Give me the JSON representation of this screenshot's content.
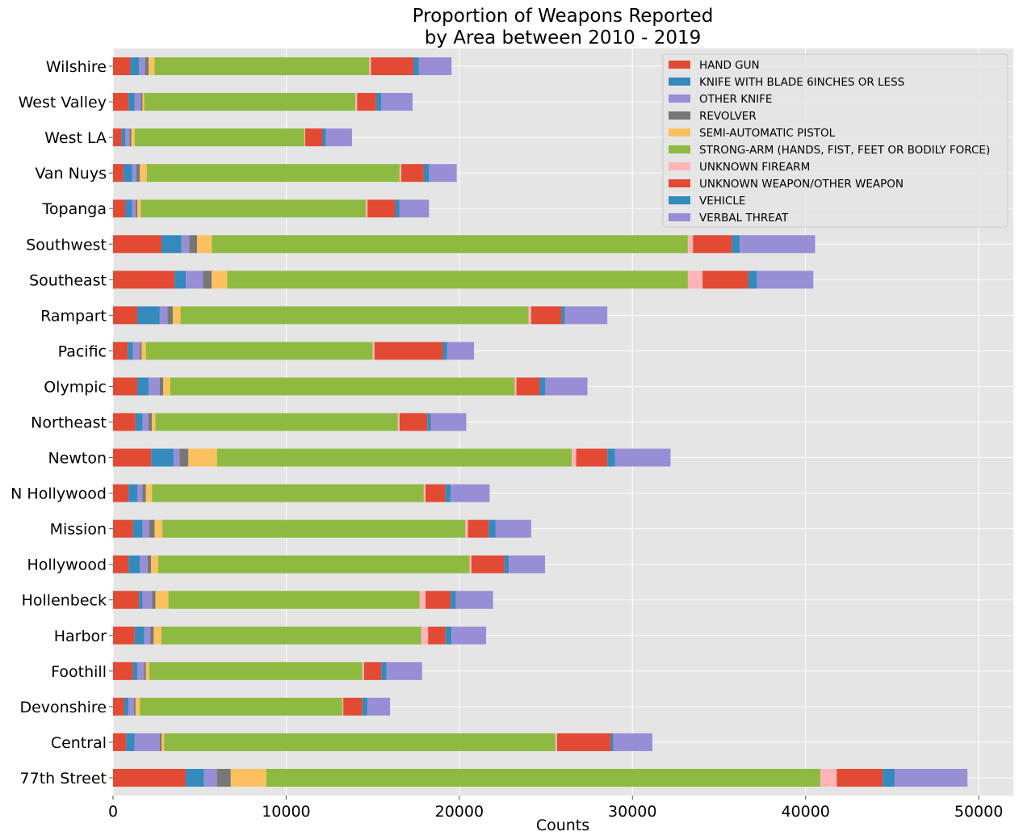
{
  "chart_data": {
    "type": "bar",
    "orientation": "horizontal",
    "stacked": true,
    "title": [
      "Proportion of Weapons Reported",
      "by Area between 2010 - 2019"
    ],
    "xlabel": "Counts",
    "ylabel": "",
    "xlim": [
      0,
      52000
    ],
    "xticks": [
      0,
      10000,
      20000,
      30000,
      40000,
      50000
    ],
    "grid": true,
    "legend_position": "top-right",
    "categories": [
      "77th Street",
      "Central",
      "Devonshire",
      "Foothill",
      "Harbor",
      "Hollenbeck",
      "Hollywood",
      "Mission",
      "N Hollywood",
      "Newton",
      "Northeast",
      "Olympic",
      "Pacific",
      "Rampart",
      "Southeast",
      "Southwest",
      "Topanga",
      "Van Nuys",
      "West LA",
      "West Valley",
      "Wilshire"
    ],
    "series": [
      {
        "name": "HAND GUN",
        "color": "#E24A33",
        "values": [
          4200,
          750,
          650,
          1150,
          1250,
          1500,
          900,
          1150,
          900,
          2200,
          1300,
          1400,
          850,
          1400,
          3550,
          2800,
          700,
          600,
          500,
          900,
          1000
        ]
      },
      {
        "name": "KNIFE WITH BLADE 6INCHES OR LESS",
        "color": "#348ABD",
        "values": [
          1050,
          500,
          250,
          250,
          550,
          200,
          650,
          550,
          500,
          1300,
          400,
          650,
          300,
          1300,
          650,
          1150,
          400,
          500,
          200,
          350,
          500
        ]
      },
      {
        "name": "OTHER KNIFE",
        "color": "#988ED5",
        "values": [
          750,
          1450,
          300,
          400,
          350,
          550,
          450,
          400,
          300,
          350,
          350,
          650,
          400,
          450,
          1000,
          450,
          200,
          250,
          250,
          350,
          350
        ]
      },
      {
        "name": "REVOLVER",
        "color": "#777777",
        "values": [
          800,
          100,
          100,
          100,
          200,
          200,
          200,
          300,
          200,
          500,
          200,
          200,
          100,
          300,
          500,
          450,
          100,
          200,
          100,
          100,
          200
        ]
      },
      {
        "name": "SEMI-AUTOMATIC PISTOL",
        "color": "#FBC15E",
        "values": [
          2050,
          150,
          250,
          200,
          450,
          750,
          400,
          450,
          350,
          1650,
          200,
          400,
          250,
          450,
          900,
          850,
          200,
          400,
          200,
          100,
          350
        ]
      },
      {
        "name": "STRONG-ARM (HANDS, FIST, FEET OR BODILY FORCE)",
        "color": "#8EBA42",
        "values": [
          32000,
          22600,
          11700,
          12300,
          15000,
          14500,
          18000,
          17500,
          15700,
          20500,
          14000,
          19900,
          13100,
          20100,
          26600,
          27500,
          13000,
          14600,
          9800,
          12200,
          12400
        ]
      },
      {
        "name": "UNKNOWN FIREARM",
        "color": "#FFB5B8",
        "values": [
          950,
          100,
          50,
          100,
          400,
          350,
          100,
          150,
          100,
          250,
          100,
          100,
          100,
          150,
          850,
          300,
          100,
          100,
          50,
          100,
          100
        ]
      },
      {
        "name": "UNKNOWN WEAPON/OTHER WEAPON",
        "color": "#E24A33",
        "values": [
          2650,
          3100,
          1100,
          1000,
          1000,
          1450,
          1900,
          1200,
          1150,
          1800,
          1600,
          1350,
          3950,
          1750,
          2650,
          2250,
          1600,
          1300,
          1000,
          1100,
          2450
        ]
      },
      {
        "name": "VEHICLE",
        "color": "#348ABD",
        "values": [
          700,
          150,
          300,
          300,
          350,
          300,
          250,
          400,
          300,
          450,
          200,
          300,
          250,
          200,
          500,
          450,
          250,
          300,
          200,
          300,
          300
        ]
      },
      {
        "name": "VERBAL THREAT",
        "color": "#988ED5",
        "values": [
          4200,
          2250,
          1300,
          2050,
          2000,
          2150,
          2100,
          2050,
          2250,
          3200,
          2050,
          2450,
          1550,
          2450,
          3250,
          4350,
          1700,
          1600,
          1500,
          1800,
          1900
        ]
      }
    ]
  }
}
